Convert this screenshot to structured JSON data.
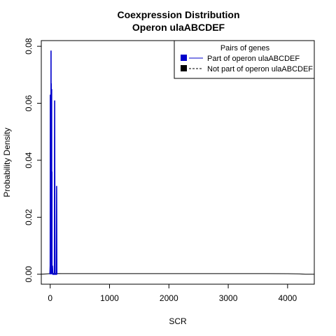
{
  "chart_data": {
    "type": "line",
    "title": "Coexpression Distribution",
    "subtitle": "Operon ulaABCDEF",
    "xlabel": "SCR",
    "ylabel": "Probability Density",
    "xlim": [
      -150,
      4450
    ],
    "ylim": [
      -0.0035,
      0.082
    ],
    "x_ticks": [
      0,
      1000,
      2000,
      3000,
      4000
    ],
    "x_tick_labels": [
      "0",
      "1000",
      "2000",
      "3000",
      "4000"
    ],
    "y_ticks": [
      0.0,
      0.02,
      0.04,
      0.06,
      0.08
    ],
    "y_tick_labels": [
      "0.00",
      "0.02",
      "0.04",
      "0.06",
      "0.08"
    ],
    "grid": false,
    "legend": {
      "title": "Pairs of genes",
      "placement": "top-right",
      "entries": [
        {
          "label": "Part of operon ulaABCDEF",
          "color": "#0000cc",
          "line": "solid"
        },
        {
          "label": "Not part of operon ulaABCDEF",
          "color": "#000000",
          "line": "dashed"
        }
      ]
    },
    "series": [
      {
        "name": "Part of operon ulaABCDEF",
        "color": "#0000cc",
        "x": [
          -5,
          0,
          2,
          5,
          8,
          11,
          14,
          16,
          18,
          21,
          24,
          26,
          29,
          31,
          34,
          38,
          42,
          46,
          55,
          62,
          70,
          75,
          80,
          84,
          90,
          98,
          104,
          108,
          112,
          116
        ],
        "y": [
          0.0,
          0.003,
          0.063,
          0.0,
          0.06,
          0.002,
          0.0785,
          0.0,
          0.067,
          0.001,
          0.065,
          0.0,
          0.036,
          0.001,
          0.002,
          0.003,
          0.001,
          0.0,
          0.0,
          0.0,
          0.0,
          0.061,
          0.0,
          0.0,
          0.0,
          0.0,
          0.0,
          0.031,
          0.0,
          0.0
        ]
      },
      {
        "name": "Not part of operon ulaABCDEF",
        "color": "#000000",
        "x": [
          -150,
          0,
          50,
          200,
          500,
          1000,
          1500,
          2000,
          2500,
          3000,
          3500,
          4000,
          4200,
          4300,
          4450
        ],
        "y": [
          0.0,
          0.0002,
          0.00025,
          0.00022,
          0.0002,
          0.0002,
          0.0002,
          0.0002,
          0.0002,
          0.0002,
          0.0002,
          0.00018,
          0.0001,
          0.0,
          0.0
        ]
      }
    ]
  }
}
